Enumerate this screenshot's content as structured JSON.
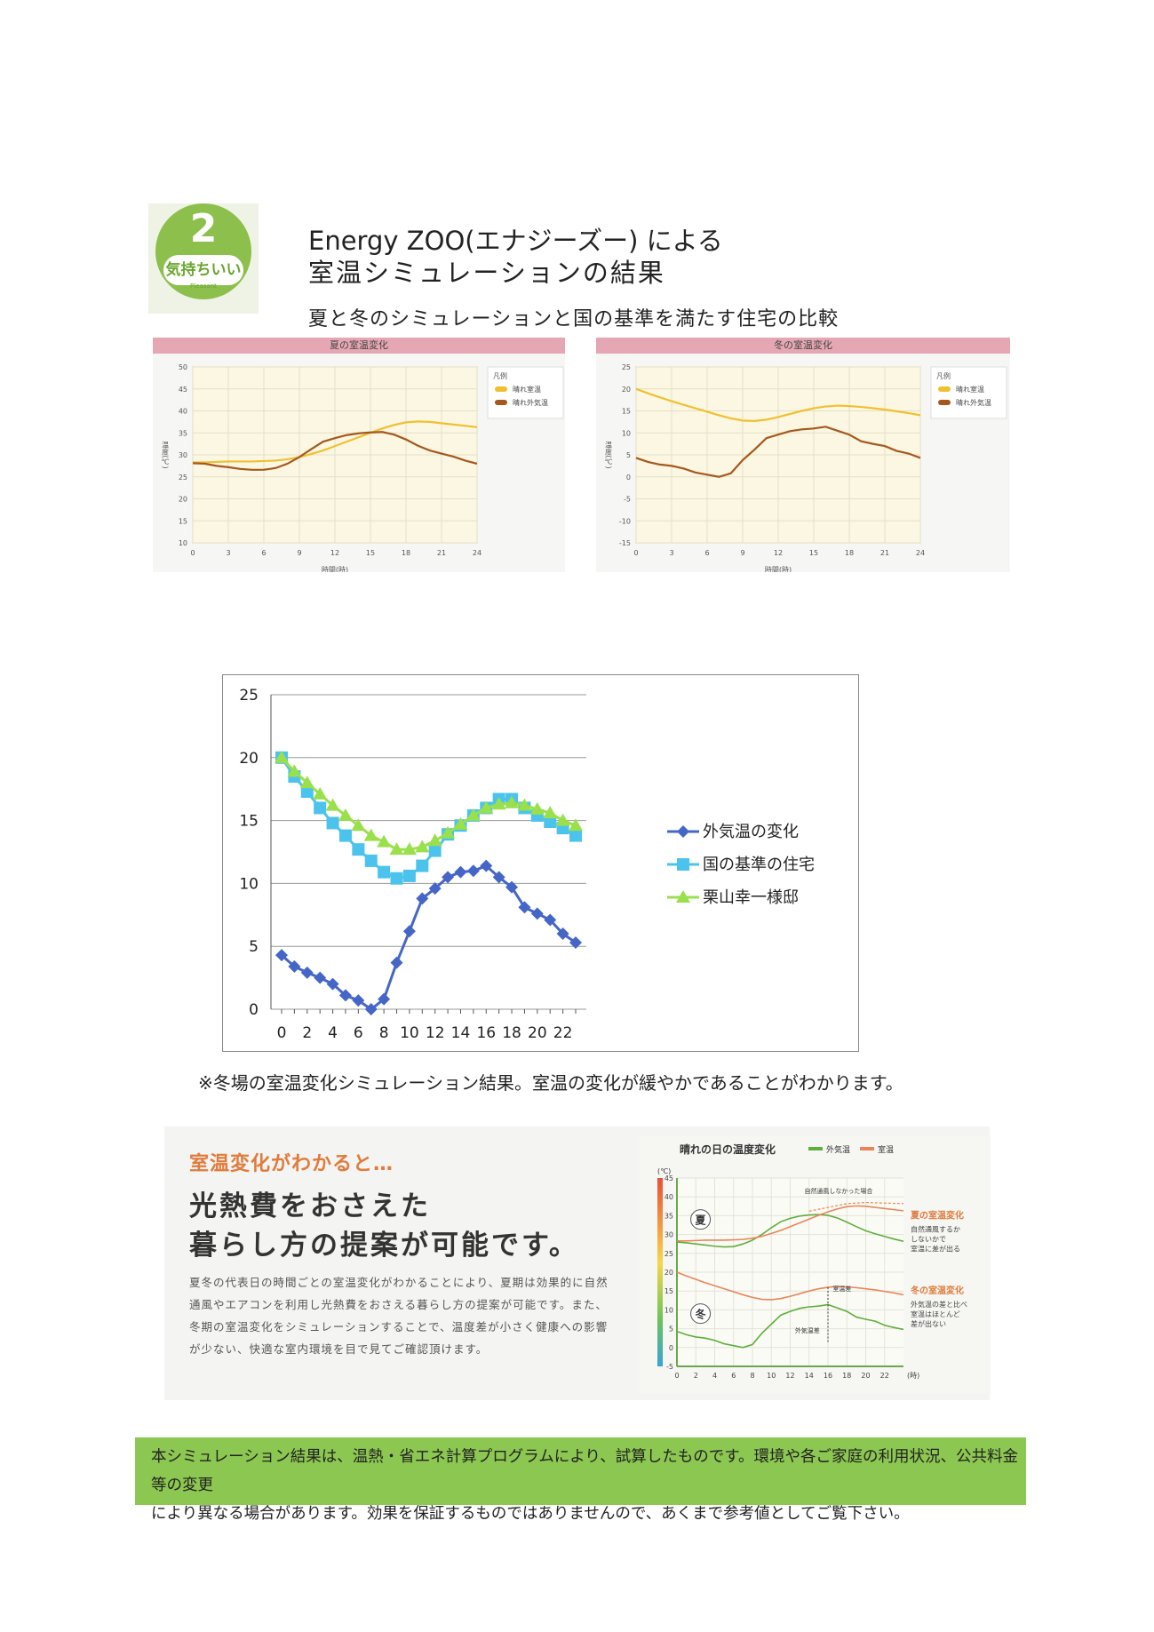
{
  "header": {
    "badge_number": "2",
    "badge_label": "気持ちいい",
    "badge_sub": "Pleasant",
    "title_line1": "Energy ZOO(エナジーズー) による",
    "title_line2": "室温シミュレーションの結果",
    "subtitle": "夏と冬のシミュレーションと国の基準を満たす住宅の比較"
  },
  "summer_panel": {
    "heading": "夏の室温変化",
    "legend_title": "凡例",
    "legend": [
      "晴れ室温",
      "晴れ外気温"
    ],
    "ylabel": "温度(℃)",
    "xlabel": "時間(時)",
    "colors": {
      "indoor": "#f0c030",
      "outdoor": "#a5581e"
    }
  },
  "winter_panel": {
    "heading": "冬の室温変化",
    "legend_title": "凡例",
    "legend": [
      "晴れ室温",
      "晴れ外気温"
    ],
    "ylabel": "温度(℃)",
    "xlabel": "時間(時)",
    "colors": {
      "indoor": "#f0c030",
      "outdoor": "#a5581e"
    }
  },
  "chart_data": [
    {
      "type": "line",
      "title": "夏の室温変化",
      "xlabel": "時間(時)",
      "ylabel": "温度(℃)",
      "x": [
        0,
        1,
        2,
        3,
        4,
        5,
        6,
        7,
        8,
        9,
        10,
        11,
        12,
        13,
        14,
        15,
        16,
        17,
        18,
        19,
        20,
        21,
        22,
        23,
        24
      ],
      "xticks": [
        0,
        3,
        6,
        9,
        12,
        15,
        18,
        21,
        24
      ],
      "yticks": [
        10,
        15,
        20,
        25,
        30,
        35,
        40,
        45,
        50
      ],
      "ylim": [
        10,
        50
      ],
      "xlim": [
        0,
        24
      ],
      "grid": true,
      "legend_position": "right",
      "series": [
        {
          "name": "晴れ室温",
          "values": [
            28.3,
            28.3,
            28.4,
            28.5,
            28.5,
            28.5,
            28.6,
            28.7,
            29.0,
            29.5,
            30.2,
            31.0,
            32.0,
            33.0,
            34.0,
            35.0,
            36.0,
            36.8,
            37.4,
            37.6,
            37.5,
            37.2,
            36.9,
            36.6,
            36.3
          ]
        },
        {
          "name": "晴れ外気温",
          "values": [
            28.1,
            28.0,
            27.5,
            27.2,
            26.8,
            26.6,
            26.6,
            27.0,
            28.0,
            29.5,
            31.3,
            33.0,
            33.8,
            34.5,
            34.9,
            35.1,
            35.2,
            34.6,
            33.5,
            32.1,
            31.0,
            30.3,
            29.6,
            28.7,
            28.0
          ]
        }
      ]
    },
    {
      "type": "line",
      "title": "冬の室温変化",
      "xlabel": "時間(時)",
      "ylabel": "温度(℃)",
      "x": [
        0,
        1,
        2,
        3,
        4,
        5,
        6,
        7,
        8,
        9,
        10,
        11,
        12,
        13,
        14,
        15,
        16,
        17,
        18,
        19,
        20,
        21,
        22,
        23,
        24
      ],
      "xticks": [
        0,
        3,
        6,
        9,
        12,
        15,
        18,
        21,
        24
      ],
      "yticks": [
        -15,
        -10,
        -5,
        0,
        5,
        10,
        15,
        20,
        25
      ],
      "ylim": [
        -15,
        25
      ],
      "xlim": [
        0,
        24
      ],
      "grid": true,
      "legend_position": "right",
      "series": [
        {
          "name": "晴れ室温",
          "values": [
            20,
            19,
            18.1,
            17.2,
            16.4,
            15.6,
            14.8,
            14.0,
            13.3,
            12.8,
            12.7,
            13.0,
            13.6,
            14.3,
            15.0,
            15.6,
            16.0,
            16.2,
            16.1,
            15.9,
            15.6,
            15.3,
            14.9,
            14.5,
            14.0
          ]
        },
        {
          "name": "晴れ外気温",
          "values": [
            4.3,
            3.4,
            2.8,
            2.5,
            1.9,
            1.0,
            0.5,
            0.0,
            0.8,
            3.8,
            6.2,
            8.8,
            9.6,
            10.4,
            10.8,
            11.0,
            11.4,
            10.5,
            9.6,
            8.1,
            7.5,
            7.0,
            5.9,
            5.3,
            4.3
          ]
        }
      ]
    },
    {
      "type": "line",
      "title": "",
      "xlabel": "",
      "ylabel": "",
      "x": [
        0,
        1,
        2,
        3,
        4,
        5,
        6,
        7,
        8,
        9,
        10,
        11,
        12,
        13,
        14,
        15,
        16,
        17,
        18,
        19,
        20,
        21,
        22,
        23
      ],
      "xticks": [
        0,
        2,
        4,
        6,
        8,
        10,
        12,
        14,
        16,
        18,
        20,
        22
      ],
      "yticks": [
        0,
        5,
        10,
        15,
        20,
        25
      ],
      "ylim": [
        0,
        25
      ],
      "grid": true,
      "legend_position": "right",
      "series": [
        {
          "name": "外気温の変化",
          "color": "#4566c6",
          "marker": "diamond",
          "values": [
            4.3,
            3.4,
            2.9,
            2.5,
            2.0,
            1.1,
            0.7,
            0.0,
            0.8,
            3.7,
            6.2,
            8.8,
            9.6,
            10.5,
            10.9,
            11.0,
            11.4,
            10.5,
            9.7,
            8.1,
            7.6,
            7.1,
            6.0,
            5.3
          ]
        },
        {
          "name": "国の基準の住宅",
          "color": "#4cc3ec",
          "marker": "square",
          "values": [
            20.0,
            18.5,
            17.3,
            16.0,
            14.8,
            13.8,
            12.7,
            11.8,
            10.9,
            10.4,
            10.6,
            11.4,
            12.6,
            13.9,
            14.6,
            15.4,
            16.0,
            16.7,
            16.7,
            16.0,
            15.4,
            14.9,
            14.4,
            13.8
          ]
        },
        {
          "name": "栗山幸一様邸",
          "color": "#99e04c",
          "marker": "triangle",
          "values": [
            20.0,
            18.9,
            18.0,
            17.1,
            16.2,
            15.4,
            14.6,
            13.8,
            13.3,
            12.7,
            12.7,
            12.9,
            13.4,
            14.0,
            14.7,
            15.4,
            16.0,
            16.3,
            16.4,
            16.2,
            15.9,
            15.6,
            15.0,
            14.6
          ]
        }
      ]
    },
    {
      "type": "line",
      "title": "晴れの日の温度変化",
      "xlabel": "",
      "ylabel": "(℃)",
      "x": [
        0,
        1,
        2,
        3,
        4,
        5,
        6,
        7,
        8,
        9,
        10,
        11,
        12,
        13,
        14,
        15,
        16,
        17,
        18,
        19,
        20,
        21,
        22,
        23,
        24
      ],
      "xticks": [
        0,
        2,
        4,
        6,
        8,
        10,
        12,
        14,
        16,
        18,
        20,
        22
      ],
      "xtick_suffix": "(時)",
      "yticks": [
        -5,
        0,
        5,
        10,
        15,
        20,
        25,
        30,
        35,
        40,
        45
      ],
      "ylim": [
        -5,
        45
      ],
      "legend_position": "top-right",
      "series": [
        {
          "name": "外気温",
          "color": "#5fae3e",
          "values_summer": [
            28.0,
            27.8,
            27.5,
            27.2,
            26.9,
            26.7,
            26.8,
            27.5,
            28.5,
            30.0,
            31.8,
            33.4,
            34.3,
            34.9,
            35.2,
            35.3,
            35.1,
            34.4,
            33.3,
            32.1,
            31.0,
            30.2,
            29.5,
            28.8,
            28.2
          ],
          "values_winter": [
            4.3,
            3.4,
            2.8,
            2.5,
            1.9,
            1.0,
            0.5,
            0.0,
            0.8,
            3.8,
            6.2,
            8.6,
            9.6,
            10.4,
            10.8,
            11.0,
            11.4,
            10.5,
            9.6,
            8.1,
            7.5,
            7.0,
            5.9,
            5.3,
            4.8
          ]
        },
        {
          "name": "室温",
          "color": "#e8865a",
          "values_summer": [
            28.3,
            28.3,
            28.4,
            28.5,
            28.5,
            28.5,
            28.6,
            28.7,
            29.0,
            29.5,
            30.3,
            31.1,
            32.1,
            33.1,
            34.1,
            35.1,
            36.0,
            36.8,
            37.4,
            37.6,
            37.5,
            37.2,
            36.9,
            36.6,
            36.3
          ],
          "values_winter": [
            20.0,
            19.0,
            18.1,
            17.2,
            16.4,
            15.6,
            14.8,
            14.0,
            13.3,
            12.8,
            12.7,
            13.0,
            13.6,
            14.3,
            15.0,
            15.6,
            16.0,
            16.2,
            16.1,
            15.9,
            15.6,
            15.3,
            14.9,
            14.5,
            14.0
          ]
        }
      ]
    }
  ],
  "main_chart_legend": [
    "外気温の変化",
    "国の基準の住宅",
    "栗山幸一様邸"
  ],
  "note": "※冬場の室温変化シミュレーション結果。室温の変化が緩やかであることがわかります。",
  "promo": {
    "lead": "室温変化がわかると…",
    "headline1": "光熱費をおさえた",
    "headline2": "暮らし方の提案が可能です。",
    "body": "夏冬の代表日の時間ごとの室温変化がわかることにより、夏期は効果的に自然通風やエアコンを利用し光熱費をおさえる暮らし方の提案が可能です。また、冬期の室温変化をシミュレーションすることで、温度差が小さく健康への影響が少ない、快適な室内環境を目で見てご確認頂けます。",
    "chart_title": "晴れの日の温度変化",
    "legend": [
      "外気温",
      "室温"
    ],
    "unit": "(℃)",
    "x_unit": "(時)",
    "summer_marker": "夏",
    "winter_marker": "冬",
    "annotation_no_vent": "自然通風しなかった場合",
    "annotation_room_diff": "室温差",
    "annotation_out_diff": "外気温差",
    "summer_side_title": "夏の室温変化",
    "summer_side_text": [
      "自然通風するか",
      "しないかで",
      "室温に差が出る"
    ],
    "winter_side_title": "冬の室温変化",
    "winter_side_text": [
      "外気温の差と比べ",
      "室温はほとんど",
      "差が出ない"
    ]
  },
  "footer": {
    "line1": "本シミュレーション結果は、温熱・省エネ計算プログラムにより、試算したものです。環境や各ご家庭の利用状況、公共料金等の変更",
    "line2": "により異なる場合があります。効果を保証するものではありませんので、あくまで参考値としてご覧下さい。"
  }
}
